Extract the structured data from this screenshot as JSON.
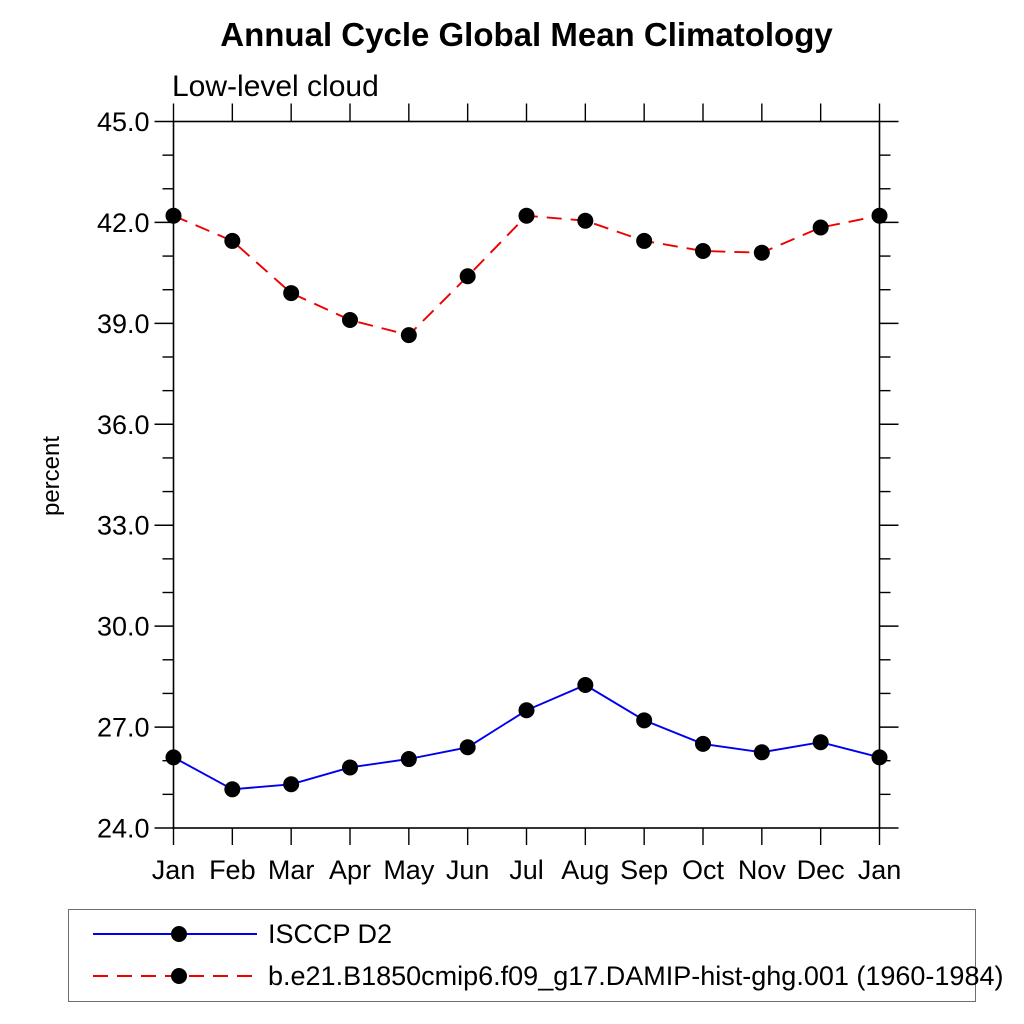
{
  "chart_data": {
    "type": "line",
    "title": "Annual Cycle Global Mean Climatology",
    "subtitle": "Low-level cloud",
    "ylabel": "percent",
    "xlabel": "",
    "categories": [
      "Jan",
      "Feb",
      "Mar",
      "Apr",
      "May",
      "Jun",
      "Jul",
      "Aug",
      "Sep",
      "Oct",
      "Nov",
      "Dec",
      "Jan"
    ],
    "series": [
      {
        "name": "ISCCP D2",
        "color": "#0000ee",
        "line_style": "solid",
        "marker": "circle",
        "marker_color": "#000000",
        "values": [
          26.1,
          25.15,
          25.3,
          25.8,
          26.05,
          26.4,
          27.5,
          28.25,
          27.2,
          26.5,
          26.25,
          26.55,
          26.1
        ]
      },
      {
        "name": "b.e21.B1850cmip6.f09_g17.DAMIP-hist-ghg.001 (1960-1984)",
        "color": "#ee0000",
        "line_style": "dashed",
        "marker": "circle",
        "marker_color": "#000000",
        "values": [
          42.2,
          41.45,
          39.9,
          39.1,
          38.65,
          40.4,
          42.2,
          42.05,
          41.45,
          41.15,
          41.1,
          41.85,
          42.2
        ]
      }
    ],
    "ylim": [
      24.0,
      45.0
    ],
    "ytick_major": [
      24.0,
      27.0,
      30.0,
      33.0,
      36.0,
      39.0,
      42.0,
      45.0
    ],
    "ytick_labels": [
      "24.0",
      "27.0",
      "30.0",
      "33.0",
      "36.0",
      "39.0",
      "42.0",
      "45.0"
    ],
    "ytick_minor_step": 1.0,
    "grid": false,
    "legend_position": "bottom-left-box",
    "axis_color": "#000000",
    "background_color": "#ffffff"
  }
}
